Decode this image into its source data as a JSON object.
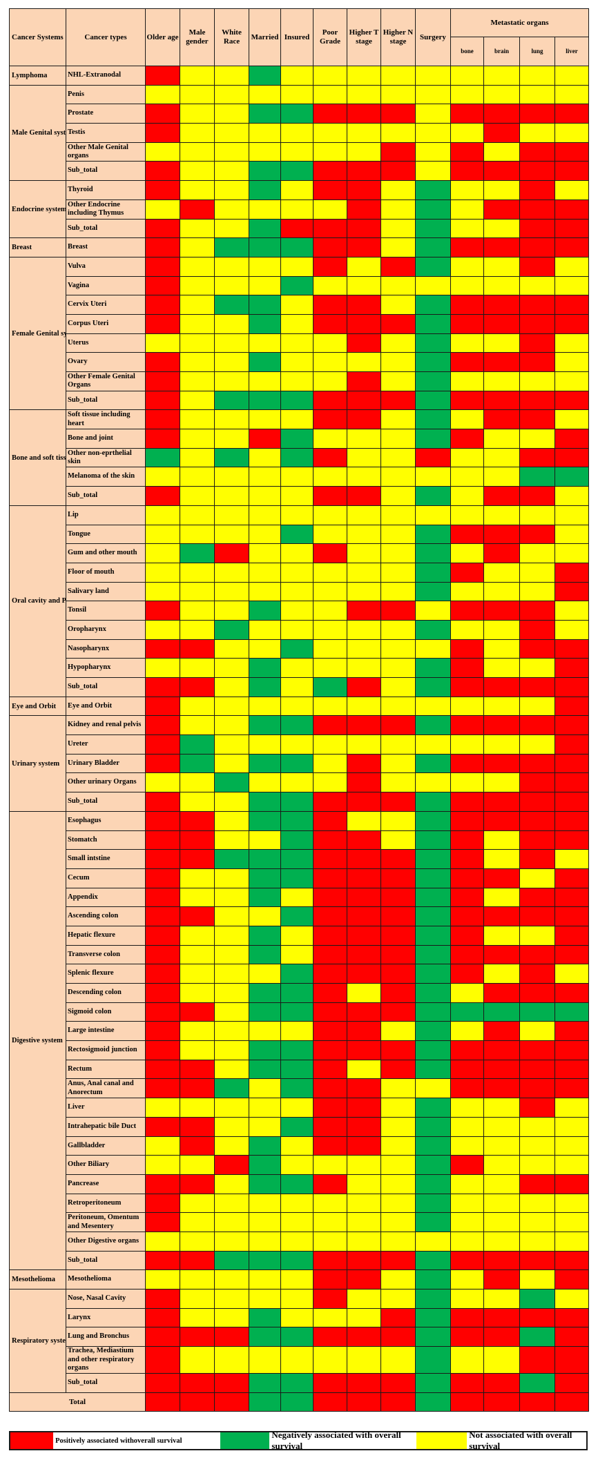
{
  "colors": {
    "R": "#ff0000",
    "G": "#00b050",
    "Y": "#ffff00",
    "header_bg": "#fcd5b5"
  },
  "header": {
    "system": "Cancer Systems",
    "type": "Cancer types",
    "factors": [
      "Older age",
      "Male gender",
      "White Race",
      "Married",
      "Insured",
      "Poor Grade",
      "Higher T stage",
      "Higher N stage",
      "Surgery"
    ],
    "metastatic_group": "Metastatic organs",
    "metastatic": [
      "bone",
      "brain",
      "lung",
      "liver"
    ]
  },
  "chart_data": {
    "type": "heatmap",
    "columns": [
      "Older age",
      "Male gender",
      "White Race",
      "Married",
      "Insured",
      "Poor Grade",
      "Higher T stage",
      "Higher N stage",
      "Surgery",
      "bone",
      "brain",
      "lung",
      "liver"
    ],
    "value_legend": {
      "R": "Positively associated withoverall survival",
      "G": "Negatively associated with overall survival",
      "Y": "Not associated with overall survival"
    },
    "groups": [
      {
        "system": "Lymphoma",
        "rows": [
          {
            "type": "NHL-Extranodal",
            "values": "RYYGYYYYYYYYY"
          }
        ]
      },
      {
        "system": "Male Genital system",
        "rows": [
          {
            "type": "Penis",
            "values": "YYYYYYYYYYYYY"
          },
          {
            "type": "Prostate",
            "values": "RYYGGRRRYRRRR"
          },
          {
            "type": "Testis",
            "values": "RYYYYYYYYYRYY"
          },
          {
            "type": "Other Male Genital organs",
            "values": "YYYYYYYRYRYRR"
          },
          {
            "type": "Sub_total",
            "values": "RYYGGRRRYRRRR"
          }
        ]
      },
      {
        "system": "Endocrine system",
        "rows": [
          {
            "type": "Thyroid",
            "values": "RYYGYRRYGYYRY"
          },
          {
            "type": "Other Endocrine including Thymus",
            "values": "YRYYYYRYGYRRR"
          },
          {
            "type": "Sub_total",
            "values": "RYYGRRRYGYYRR"
          }
        ]
      },
      {
        "system": "Breast",
        "rows": [
          {
            "type": "Breast",
            "values": "RYGGGRRYGRRRR"
          }
        ]
      },
      {
        "system": "Female Genital system",
        "rows": [
          {
            "type": "Vulva",
            "values": "RYYYYRYRGYYRY"
          },
          {
            "type": "Vagina",
            "values": "RYYYGYYYYYYYY"
          },
          {
            "type": "Cervix Uteri",
            "values": "RYGGYRRYGRRRR"
          },
          {
            "type": "Corpus Uteri",
            "values": "RYYGYRRRGRRRR"
          },
          {
            "type": "Uterus",
            "values": "YYYYYYRYGYYRY"
          },
          {
            "type": "Ovary",
            "values": "RYYGYYYYGRRRY"
          },
          {
            "type": "Other Female Genital Organs",
            "values": "RYYYYYRYGYYYY"
          },
          {
            "type": "Sub_total",
            "values": "RYGGGRRRGRRRR"
          }
        ]
      },
      {
        "system": "Bone and soft tissue",
        "rows": [
          {
            "type": "Soft tissue including heart",
            "values": "RYYYYRRYGYRRY"
          },
          {
            "type": "Bone and joint",
            "values": "RYYRGYYYGRYYR"
          },
          {
            "type": "Other non-eprthelial skin",
            "values": "GYGYGRYYRYYRR"
          },
          {
            "type": "Melanoma of the skin",
            "values": "YYYYYYYYYYYGG"
          },
          {
            "type": "Sub_total",
            "values": "RYYYYRRYGYRRY"
          }
        ]
      },
      {
        "system": "Oral cavity and Pharynx",
        "rows": [
          {
            "type": "Lip",
            "values": "YYYYYYYYYYYYY"
          },
          {
            "type": "Tongue",
            "values": "YYYYGYYYGRRRY"
          },
          {
            "type": "Gum and other mouth",
            "values": "YGRYYRYYGYRYY"
          },
          {
            "type": "Floor of mouth",
            "values": "YYYYYYYYGRYYR"
          },
          {
            "type": "Salivary land",
            "values": "YYYYYYYYGYYYR"
          },
          {
            "type": "Tonsil",
            "values": "RYYGYYRRYRRRY"
          },
          {
            "type": "Oropharynx",
            "values": "YYGYYYYYGYYRY"
          },
          {
            "type": "Nasopharynx",
            "values": "RRYYGYYYYRYRR"
          },
          {
            "type": "Hypopharynx",
            "values": "YYYGYYYYGRYYR"
          },
          {
            "type": "Sub_total",
            "values": "RRYGYGRYGRRRR"
          }
        ]
      },
      {
        "system": "Eye and Orbit",
        "rows": [
          {
            "type": "Eye and Orbit",
            "values": "RYYYYYYYYYYYR"
          }
        ]
      },
      {
        "system": "Urinary system",
        "rows": [
          {
            "type": "Kidney and renal pelvis",
            "values": "RYYGGRRRGRRRR"
          },
          {
            "type": "Ureter",
            "values": "RGYYYYYYYYYYR"
          },
          {
            "type": "Urinary Bladder",
            "values": "RGYGGYRYGRRRR"
          },
          {
            "type": "Other urinary Organs",
            "values": "YYGYYYRYYYYRR"
          },
          {
            "type": "Sub_total",
            "values": "RYYGGRRRGRRRR"
          }
        ]
      },
      {
        "system": "Digestive system",
        "rows": [
          {
            "type": "Esophagus",
            "values": "RRYGGRYYGRRRR"
          },
          {
            "type": "Stomatch",
            "values": "RRYYGRRYGRYRR"
          },
          {
            "type": "Small intstine",
            "values": "RRGGGRRRGRYRY"
          },
          {
            "type": "Cecum",
            "values": "RYYGGRRRGRRYR"
          },
          {
            "type": "Appendix",
            "values": "RYYGYRRRGRYRR"
          },
          {
            "type": "Ascending colon",
            "values": "RRYYGRRRGRRRR"
          },
          {
            "type": "Hepatic flexure",
            "values": "RYYGYRRRGRYYR"
          },
          {
            "type": "Transverse colon",
            "values": "RYYGYRRRGRRRR"
          },
          {
            "type": "Splenic flexure",
            "values": "RYYYGRRRGRYRY"
          },
          {
            "type": "Descending colon",
            "values": "RYYGGRYRGYRRR"
          },
          {
            "type": "Sigmoid colon",
            "values": "RRYGGRRRGGGGG"
          },
          {
            "type": "Large intestine",
            "values": "RYYYYRRYGYRYR"
          },
          {
            "type": "Rectosigmoid junction",
            "values": "RYYGGRRRGRRRR"
          },
          {
            "type": "Rectum",
            "values": "RRYGGRYRGRRRR"
          },
          {
            "type": "Anus, Anal canal and Anorectum",
            "values": "RRGYGRRYYRRRR"
          },
          {
            "type": "Liver",
            "values": "YYYYYRRYGYYRY"
          },
          {
            "type": "Intrahepatic bile Duct",
            "values": "RRYYGRRYGYYYY"
          },
          {
            "type": "Gallbladder",
            "values": "YRYGYRRYGYYYY"
          },
          {
            "type": "Other Biliary",
            "values": "YYRGYYYYGRYYY"
          },
          {
            "type": "Pancrease",
            "values": "RRYGGRYYGYYRR"
          },
          {
            "type": "Retroperitoneum",
            "values": "RYYYYYYYGYYYY"
          },
          {
            "type": "Peritoneum, Omentum and Mesentery",
            "values": "RYYYYYYYGYYYY"
          },
          {
            "type": "Other Digestive organs",
            "values": "YYYYYYYYYYYYY"
          },
          {
            "type": "Sub_total",
            "values": "RRGGGRRRGRRRR"
          }
        ]
      },
      {
        "system": "Mesothelioma",
        "rows": [
          {
            "type": "Mesothelioma",
            "values": "YYYYYRRYGYRYR"
          }
        ]
      },
      {
        "system": "Respiratory system",
        "rows": [
          {
            "type": "Nose, Nasal Cavity",
            "values": "RYYYYRYYGYYGY"
          },
          {
            "type": "Larynx",
            "values": "RYYGYYYRGRRRR"
          },
          {
            "type": "Lung and Bronchus",
            "values": "RRRGGRRRGRRGR"
          },
          {
            "type": "Trachea, Mediastium and other respiratory organs",
            "values": "RYYYYYYYGYYRR"
          },
          {
            "type": "Sub_total",
            "values": "RRRGGRRRGRRGR"
          }
        ]
      }
    ],
    "total": {
      "label": "Total",
      "values": "RRRGGRRRGRRRR"
    }
  },
  "legend": [
    {
      "key": "R",
      "label": "Positively associated withoverall survival"
    },
    {
      "key": "G",
      "label": "Negatively associated with overall survival"
    },
    {
      "key": "Y",
      "label": "Not associated with overall survival"
    }
  ]
}
